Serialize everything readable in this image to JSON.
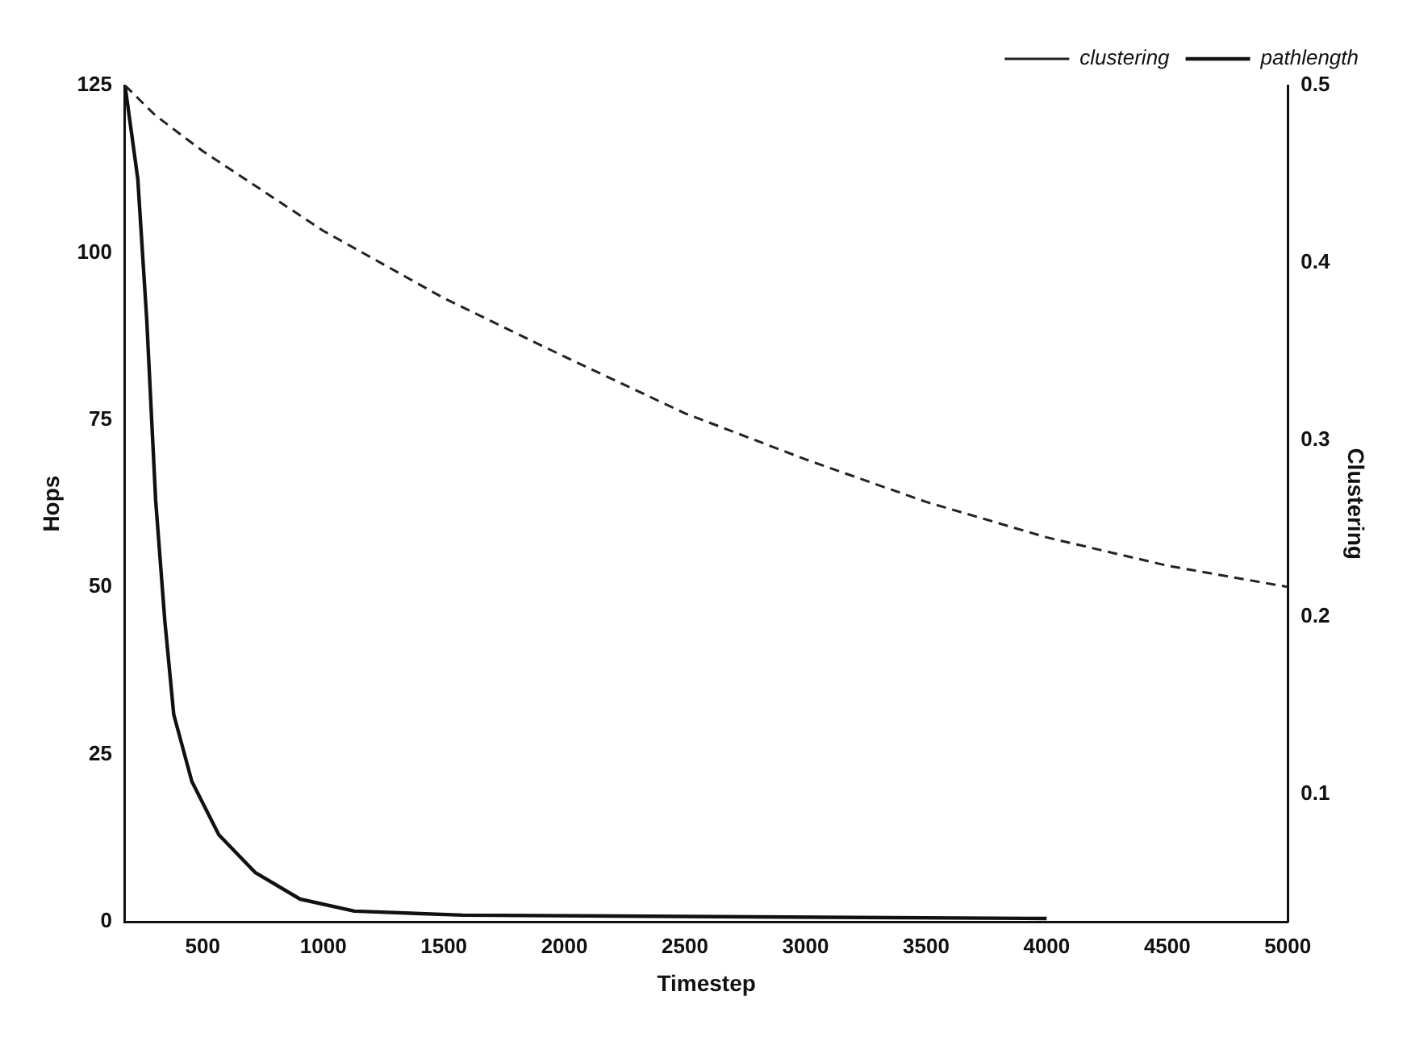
{
  "chart_data": {
    "type": "line",
    "xlabel": "Timestep",
    "ylabel": "Hops",
    "y2label": "Clustering",
    "xlim": [
      178,
      5000
    ],
    "xticks": [
      500,
      1000,
      1500,
      2000,
      2500,
      3000,
      3500,
      4000,
      4500,
      5000
    ],
    "ylim": [
      0,
      125
    ],
    "yticks": [
      0,
      25,
      50,
      75,
      100,
      125
    ],
    "y2lim": [
      0.028,
      0.5
    ],
    "y2ticks": [
      0.1,
      0.2,
      0.3,
      0.4,
      0.5
    ],
    "legend": "top right",
    "grid": false,
    "marker": "none",
    "series": [
      {
        "name": "clustering",
        "color": "#222222",
        "axis": "y2",
        "line_style": "dashed",
        "x": [
          178,
          305,
          500,
          1000,
          1500,
          2000,
          2500,
          3000,
          3500,
          4000,
          4500,
          5000
        ],
        "values": [
          0.5,
          0.483,
          0.463,
          0.418,
          0.38,
          0.347,
          0.315,
          0.289,
          0.265,
          0.245,
          0.229,
          0.217
        ]
      },
      {
        "name": "pathlength",
        "color": "#111111",
        "axis": "y",
        "line_style": "solid",
        "x": [
          178,
          231,
          268,
          305,
          343,
          380,
          455,
          567,
          717,
          904,
          1129,
          1578,
          4000
        ],
        "values": [
          125,
          111,
          90,
          63,
          45,
          31,
          21,
          13,
          7.4,
          3.4,
          1.6,
          1,
          0.5
        ]
      }
    ]
  }
}
